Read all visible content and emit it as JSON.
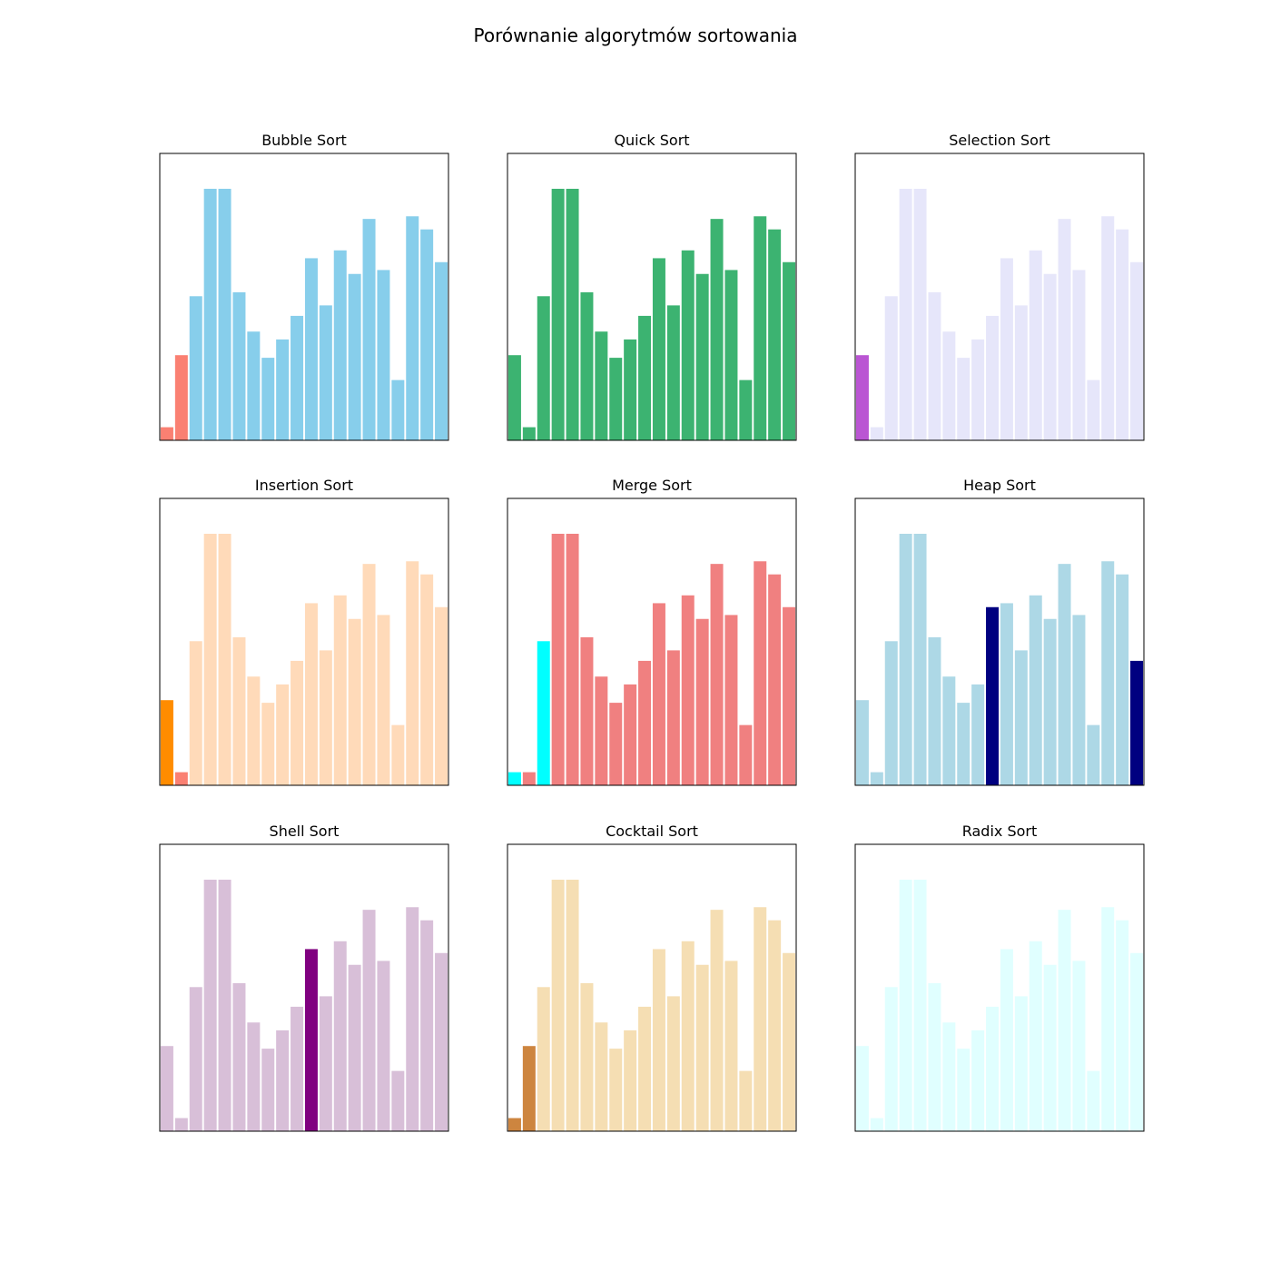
{
  "figure": {
    "title": "Porównanie algorytmów sortowania"
  },
  "chart_data": [
    {
      "type": "bar",
      "title": "Bubble Sort",
      "base_color": "#87ceeb",
      "values": [
        1,
        6.5,
        11,
        19.2,
        19.2,
        11.3,
        8.3,
        6.3,
        7.7,
        9.5,
        13.9,
        10.3,
        14.5,
        12.7,
        16.9,
        13,
        4.6,
        17.1,
        16.1,
        13.6
      ],
      "highlights": [
        {
          "index": 0,
          "color": "#fa8072"
        },
        {
          "index": 1,
          "color": "#fa8072"
        }
      ],
      "ylim": [
        0,
        21.9
      ]
    },
    {
      "type": "bar",
      "title": "Quick Sort",
      "base_color": "#3cb371",
      "values": [
        6.5,
        1,
        11,
        19.2,
        19.2,
        11.3,
        8.3,
        6.3,
        7.7,
        9.5,
        13.9,
        10.3,
        14.5,
        12.7,
        16.9,
        13,
        4.6,
        17.1,
        16.1,
        13.6
      ],
      "highlights": [],
      "ylim": [
        0,
        21.9
      ]
    },
    {
      "type": "bar",
      "title": "Selection Sort",
      "base_color": "#e6e6fa",
      "values": [
        6.5,
        1,
        11,
        19.2,
        19.2,
        11.3,
        8.3,
        6.3,
        7.7,
        9.5,
        13.9,
        10.3,
        14.5,
        12.7,
        16.9,
        13,
        4.6,
        17.1,
        16.1,
        13.6
      ],
      "highlights": [
        {
          "index": 0,
          "color": "#ba55d3"
        }
      ],
      "ylim": [
        0,
        21.9
      ]
    },
    {
      "type": "bar",
      "title": "Insertion Sort",
      "base_color": "#ffdab9",
      "values": [
        6.5,
        1,
        11,
        19.2,
        19.2,
        11.3,
        8.3,
        6.3,
        7.7,
        9.5,
        13.9,
        10.3,
        14.5,
        12.7,
        16.9,
        13,
        4.6,
        17.1,
        16.1,
        13.6
      ],
      "highlights": [
        {
          "index": 0,
          "color": "#ff8c00"
        },
        {
          "index": 1,
          "color": "#fa8072"
        }
      ],
      "ylim": [
        0,
        21.9
      ]
    },
    {
      "type": "bar",
      "title": "Merge Sort",
      "base_color": "#f08080",
      "values": [
        1,
        1,
        11,
        19.2,
        19.2,
        11.3,
        8.3,
        6.3,
        7.7,
        9.5,
        13.9,
        10.3,
        14.5,
        12.7,
        16.9,
        13,
        4.6,
        17.1,
        16.1,
        13.6
      ],
      "highlights": [
        {
          "index": 0,
          "color": "#00ffff"
        },
        {
          "index": 2,
          "color": "#00ffff"
        }
      ],
      "ylim": [
        0,
        21.9
      ]
    },
    {
      "type": "bar",
      "title": "Heap Sort",
      "base_color": "#add8e6",
      "values": [
        6.5,
        1,
        11,
        19.2,
        19.2,
        11.3,
        8.3,
        6.3,
        7.7,
        13.6,
        13.9,
        10.3,
        14.5,
        12.7,
        16.9,
        13,
        4.6,
        17.1,
        16.1,
        9.5
      ],
      "highlights": [
        {
          "index": 9,
          "color": "#000080"
        },
        {
          "index": 19,
          "color": "#000080"
        }
      ],
      "ylim": [
        0,
        21.9
      ]
    },
    {
      "type": "bar",
      "title": "Shell Sort",
      "base_color": "#d8bfd8",
      "values": [
        6.5,
        1,
        11,
        19.2,
        19.2,
        11.3,
        8.3,
        6.3,
        7.7,
        9.5,
        13.9,
        10.3,
        14.5,
        12.7,
        16.9,
        13,
        4.6,
        17.1,
        16.1,
        13.6
      ],
      "highlights": [
        {
          "index": 10,
          "color": "#800080"
        }
      ],
      "ylim": [
        0,
        21.9
      ]
    },
    {
      "type": "bar",
      "title": "Cocktail Sort",
      "base_color": "#f5deb3",
      "values": [
        1,
        6.5,
        11,
        19.2,
        19.2,
        11.3,
        8.3,
        6.3,
        7.7,
        9.5,
        13.9,
        10.3,
        14.5,
        12.7,
        16.9,
        13,
        4.6,
        17.1,
        16.1,
        13.6
      ],
      "highlights": [
        {
          "index": 0,
          "color": "#cd853f"
        },
        {
          "index": 1,
          "color": "#cd853f"
        }
      ],
      "ylim": [
        0,
        21.9
      ]
    },
    {
      "type": "bar",
      "title": "Radix Sort",
      "base_color": "#e0ffff",
      "values": [
        6.5,
        1,
        11,
        19.2,
        19.2,
        11.3,
        8.3,
        6.3,
        7.7,
        9.5,
        13.9,
        10.3,
        14.5,
        12.7,
        16.9,
        13,
        4.6,
        17.1,
        16.1,
        13.6
      ],
      "highlights": [],
      "ylim": [
        0,
        21.9
      ]
    }
  ]
}
